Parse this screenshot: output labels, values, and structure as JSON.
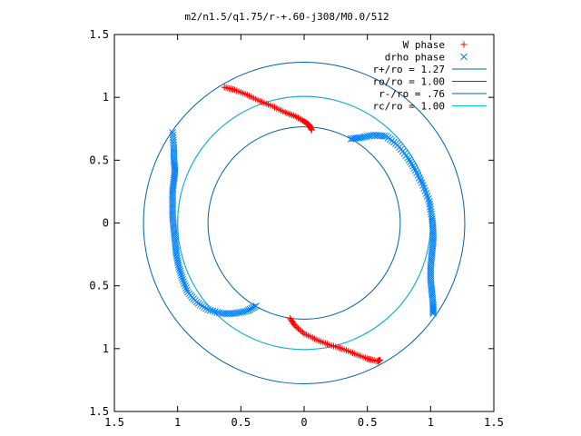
{
  "chart_data": {
    "type": "scatter",
    "title": "m2/n1.5/q1.75/r-+.60-j308/M0.0/512",
    "xlabel": "",
    "ylabel": "",
    "xlim": [
      -1.5,
      1.5
    ],
    "ylim": [
      -1.5,
      1.5
    ],
    "x_ticks": [
      -1.5,
      -1,
      -0.5,
      0,
      0.5,
      1,
      1.5
    ],
    "y_ticks": [
      -1.5,
      -1,
      -0.5,
      0,
      0.5,
      1,
      1.5
    ],
    "x_tick_labels": [
      "1.5",
      "1",
      "0.5",
      "0",
      "0.5",
      "1",
      "1.5"
    ],
    "y_tick_labels": [
      "1.5",
      "1",
      "0.5",
      "0",
      "0.5",
      "1",
      "1.5"
    ],
    "grid": false,
    "legend_position": "top-right",
    "series": [
      {
        "name": "W phase",
        "kind": "points",
        "marker": "plus",
        "color": "#ff0000",
        "segments": [
          [
            [
              -0.63,
              1.08
            ],
            [
              -0.55,
              1.06
            ],
            [
              -0.45,
              1.02
            ],
            [
              -0.35,
              0.97
            ],
            [
              -0.25,
              0.93
            ],
            [
              -0.15,
              0.88
            ],
            [
              -0.07,
              0.85
            ],
            [
              0.0,
              0.81
            ],
            [
              0.04,
              0.78
            ],
            [
              0.06,
              0.74
            ]
          ],
          [
            [
              -0.11,
              -0.76
            ],
            [
              -0.07,
              -0.82
            ],
            [
              0.0,
              -0.88
            ],
            [
              0.1,
              -0.93
            ],
            [
              0.2,
              -0.97
            ],
            [
              0.3,
              -1.0
            ],
            [
              0.4,
              -1.04
            ],
            [
              0.5,
              -1.08
            ],
            [
              0.58,
              -1.1
            ],
            [
              0.6,
              -1.09
            ]
          ]
        ]
      },
      {
        "name": "drho phase",
        "kind": "points",
        "marker": "cross",
        "color": "#0080ff",
        "segments": [
          [
            [
              -1.04,
              0.72
            ],
            [
              -1.03,
              0.6
            ],
            [
              -1.03,
              0.5
            ],
            [
              -1.02,
              0.42
            ],
            [
              -1.03,
              0.34
            ],
            [
              -1.04,
              0.25
            ],
            [
              -1.04,
              0.15
            ],
            [
              -1.04,
              0.05
            ],
            [
              -1.03,
              -0.05
            ],
            [
              -1.02,
              -0.15
            ],
            [
              -1.01,
              -0.25
            ],
            [
              -0.99,
              -0.35
            ],
            [
              -0.96,
              -0.45
            ],
            [
              -0.92,
              -0.55
            ],
            [
              -0.85,
              -0.63
            ],
            [
              -0.76,
              -0.69
            ],
            [
              -0.65,
              -0.72
            ],
            [
              -0.55,
              -0.72
            ],
            [
              -0.45,
              -0.7
            ],
            [
              -0.38,
              -0.66
            ]
          ],
          [
            [
              0.37,
              0.67
            ],
            [
              0.45,
              0.68
            ],
            [
              0.55,
              0.7
            ],
            [
              0.65,
              0.69
            ],
            [
              0.74,
              0.62
            ],
            [
              0.82,
              0.52
            ],
            [
              0.88,
              0.42
            ],
            [
              0.94,
              0.3
            ],
            [
              0.99,
              0.17
            ],
            [
              1.01,
              0.05
            ],
            [
              1.02,
              -0.05
            ],
            [
              1.02,
              -0.15
            ],
            [
              1.01,
              -0.25
            ],
            [
              1.0,
              -0.35
            ],
            [
              1.0,
              -0.45
            ],
            [
              1.01,
              -0.55
            ],
            [
              1.02,
              -0.65
            ],
            [
              1.02,
              -0.72
            ]
          ]
        ]
      },
      {
        "name": "r+/ro = 1.27",
        "kind": "circle",
        "radius": 1.27,
        "color": "#0060ad"
      },
      {
        "name": "ro/ro = 1.00",
        "kind": "circle",
        "radius": 1.0,
        "color": "#9400d3"
      },
      {
        "name": "r-/ro = .76",
        "kind": "circle",
        "radius": 0.76,
        "color": "#0060ad"
      },
      {
        "name": "rc/ro = 1.00",
        "kind": "circle",
        "radius": 1.0,
        "color": "#00c8d0"
      }
    ]
  }
}
